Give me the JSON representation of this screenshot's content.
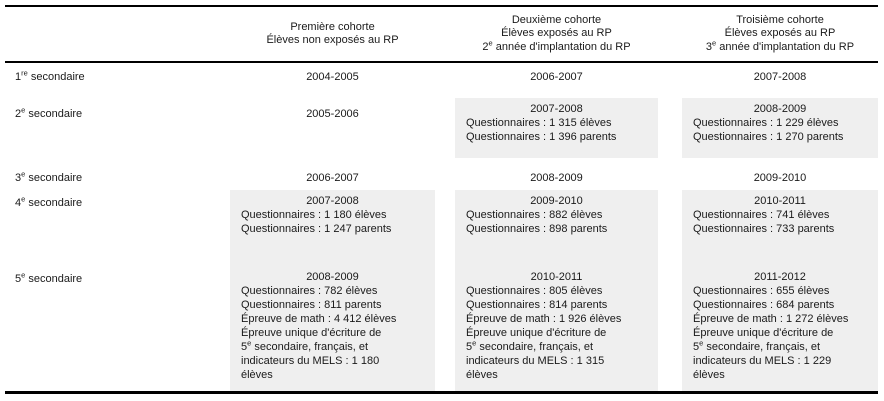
{
  "colors": {
    "cell_background": "#efefef",
    "rule": "#000000",
    "text": "#1a1a1a"
  },
  "header": {
    "cols": [
      {
        "name": "premiere-cohorte",
        "lines": [
          [
            {
              "t": "Première cohorte"
            }
          ],
          [
            {
              "t": "Élèves non exposés au RP"
            }
          ]
        ]
      },
      {
        "name": "deuxieme-cohorte",
        "lines": [
          [
            {
              "t": "Deuxième cohorte"
            }
          ],
          [
            {
              "t": "Élèves exposés au RP"
            }
          ],
          [
            {
              "t": "2"
            },
            {
              "t": "e",
              "sup": true
            },
            {
              "t": " année d'implantation du RP"
            }
          ]
        ]
      },
      {
        "name": "troisieme-cohorte",
        "lines": [
          [
            {
              "t": "Troisième cohorte"
            }
          ],
          [
            {
              "t": "Élèves exposés au RP"
            }
          ],
          [
            {
              "t": "3"
            },
            {
              "t": "e",
              "sup": true
            },
            {
              "t": " année d'implantation du RP"
            }
          ]
        ]
      }
    ]
  },
  "rows": [
    {
      "label": [
        {
          "t": "1"
        },
        {
          "t": "re",
          "sup": true
        },
        {
          "t": " secondaire"
        }
      ],
      "cells": [
        {
          "gray": false,
          "year": "2004-2005",
          "lines": []
        },
        {
          "gray": false,
          "year": "2006-2007",
          "lines": []
        },
        {
          "gray": false,
          "year": "2007-2008",
          "lines": []
        }
      ]
    },
    {
      "label": [
        {
          "t": "2"
        },
        {
          "t": "e",
          "sup": true
        },
        {
          "t": " secondaire"
        }
      ],
      "cells": [
        {
          "gray": false,
          "year": "2005-2006",
          "lines": []
        },
        {
          "gray": true,
          "year": "2007-2008",
          "lines": [
            [
              {
                "t": "Questionnaires : 1 315 élèves"
              }
            ],
            [
              {
                "t": "Questionnaires : 1 396 parents"
              }
            ]
          ]
        },
        {
          "gray": true,
          "year": "2008-2009",
          "lines": [
            [
              {
                "t": "Questionnaires : 1 229 élèves"
              }
            ],
            [
              {
                "t": "Questionnaires : 1 270 parents"
              }
            ]
          ]
        }
      ]
    },
    {
      "label": [
        {
          "t": "3"
        },
        {
          "t": "e",
          "sup": true
        },
        {
          "t": " secondaire"
        }
      ],
      "cells": [
        {
          "gray": false,
          "year": "2006-2007",
          "lines": []
        },
        {
          "gray": false,
          "year": "2008-2009",
          "lines": []
        },
        {
          "gray": false,
          "year": "2009-2010",
          "lines": []
        }
      ]
    },
    {
      "label": [
        {
          "t": "4"
        },
        {
          "t": "e",
          "sup": true
        },
        {
          "t": " secondaire"
        }
      ],
      "cells": [
        {
          "gray": true,
          "year": "2007-2008",
          "lines": [
            [
              {
                "t": "Questionnaires : 1 180 élèves"
              }
            ],
            [
              {
                "t": "Questionnaires : 1 247 parents"
              }
            ]
          ]
        },
        {
          "gray": true,
          "year": "2009-2010",
          "lines": [
            [
              {
                "t": "Questionnaires : 882 élèves"
              }
            ],
            [
              {
                "t": "Questionnaires : 898 parents"
              }
            ]
          ]
        },
        {
          "gray": true,
          "year": "2010-2011",
          "lines": [
            [
              {
                "t": "Questionnaires : 741 élèves"
              }
            ],
            [
              {
                "t": "Questionnaires : 733 parents"
              }
            ]
          ]
        }
      ]
    },
    {
      "label": [
        {
          "t": "5"
        },
        {
          "t": "e",
          "sup": true
        },
        {
          "t": " secondaire"
        }
      ],
      "cells": [
        {
          "gray": true,
          "year": "2008-2009",
          "lines": [
            [
              {
                "t": "Questionnaires : 782 élèves"
              }
            ],
            [
              {
                "t": "Questionnaires : 811 parents"
              }
            ],
            [
              {
                "t": "Épreuve de math : 4 412 élèves"
              }
            ],
            [
              {
                "t": "Épreuve unique d'écriture de"
              }
            ],
            [
              {
                "t": "5"
              },
              {
                "t": "e",
                "sup": true
              },
              {
                "t": " secondaire, français, et"
              }
            ],
            [
              {
                "t": "indicateurs du MELS : 1 180"
              }
            ],
            [
              {
                "t": "élèves"
              }
            ]
          ]
        },
        {
          "gray": true,
          "year": "2010-2011",
          "lines": [
            [
              {
                "t": "Questionnaires : 805 élèves"
              }
            ],
            [
              {
                "t": "Questionnaires : 814 parents"
              }
            ],
            [
              {
                "t": "Épreuve de math : 1 926 élèves"
              }
            ],
            [
              {
                "t": "Épreuve unique d'écriture de"
              }
            ],
            [
              {
                "t": "5"
              },
              {
                "t": "e",
                "sup": true
              },
              {
                "t": " secondaire, français, et"
              }
            ],
            [
              {
                "t": "indicateurs du MELS : 1 315"
              }
            ],
            [
              {
                "t": "élèves"
              }
            ]
          ]
        },
        {
          "gray": true,
          "year": "2011-2012",
          "lines": [
            [
              {
                "t": "Questionnaires : 655 élèves"
              }
            ],
            [
              {
                "t": "Questionnaires : 684 parents"
              }
            ],
            [
              {
                "t": "Épreuve de math : 1 272 élèves"
              }
            ],
            [
              {
                "t": "Épreuve unique d'écriture de"
              }
            ],
            [
              {
                "t": "5"
              },
              {
                "t": "e",
                "sup": true
              },
              {
                "t": " secondaire, français, et"
              }
            ],
            [
              {
                "t": "indicateurs du MELS : 1 229"
              }
            ],
            [
              {
                "t": "élèves"
              }
            ]
          ]
        }
      ]
    }
  ]
}
